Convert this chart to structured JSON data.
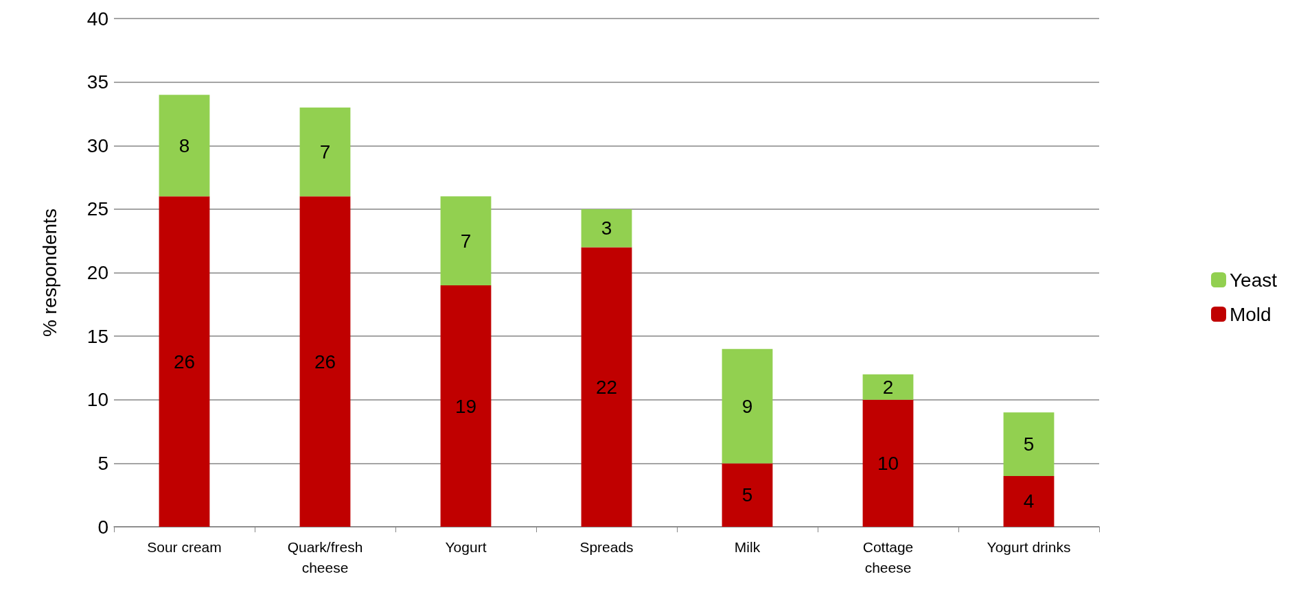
{
  "chart_data": {
    "type": "bar",
    "stacked": true,
    "ylabel": "% respondents",
    "categories": [
      "Sour cream",
      "Quark/fresh\ncheese",
      "Yogurt",
      "Spreads",
      "Milk",
      "Cottage\ncheese",
      "Yogurt drinks"
    ],
    "series": [
      {
        "name": "Mold",
        "color": "#c00000",
        "values": [
          26,
          26,
          19,
          22,
          5,
          10,
          4
        ]
      },
      {
        "name": "Yeast",
        "color": "#92d050",
        "values": [
          8,
          7,
          7,
          3,
          9,
          2,
          5
        ]
      }
    ],
    "ylim": [
      0,
      40
    ],
    "yticks": [
      0,
      5,
      10,
      15,
      20,
      25,
      30,
      35,
      40
    ],
    "grid": "y",
    "legend": "right",
    "data_labels": true
  }
}
